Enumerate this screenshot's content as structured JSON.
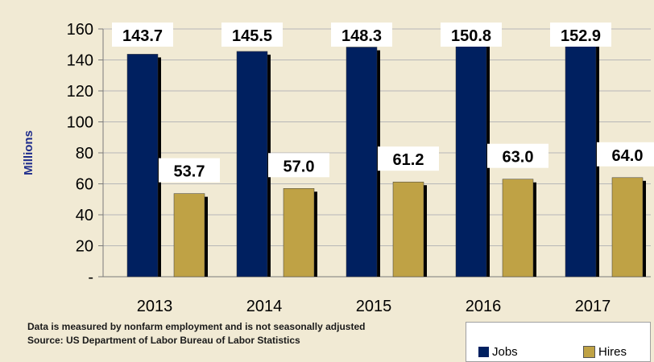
{
  "chart_data": {
    "type": "bar",
    "categories": [
      "2013",
      "2014",
      "2015",
      "2016",
      "2017"
    ],
    "series": [
      {
        "name": "Jobs",
        "values": [
          143.7,
          145.5,
          148.3,
          150.8,
          152.9
        ],
        "color": "#002060"
      },
      {
        "name": "Hires",
        "values": [
          53.7,
          57.0,
          61.2,
          63.0,
          64.0
        ],
        "color": "#bfa245"
      }
    ],
    "data_labels": {
      "Jobs": [
        "143.7",
        "145.5",
        "148.3",
        "150.8",
        "152.9"
      ],
      "Hires": [
        "53.7",
        "57.0",
        "61.2",
        "63.0",
        "64.0"
      ]
    },
    "ylabel": "Millions",
    "ylim": [
      0,
      160
    ],
    "yticks": [
      0,
      20,
      40,
      60,
      80,
      100,
      120,
      140,
      160
    ],
    "ytick_labels": [
      "-",
      "20",
      "40",
      "60",
      "80",
      "100",
      "120",
      "140",
      "160"
    ],
    "grid": "horizontal",
    "legend_position": "bottom-right"
  },
  "notes": {
    "line1": "Data is measured by nonfarm employment and is not seasonally adjusted",
    "line2": "Source:  US Department of Labor Bureau of Labor Statistics"
  }
}
